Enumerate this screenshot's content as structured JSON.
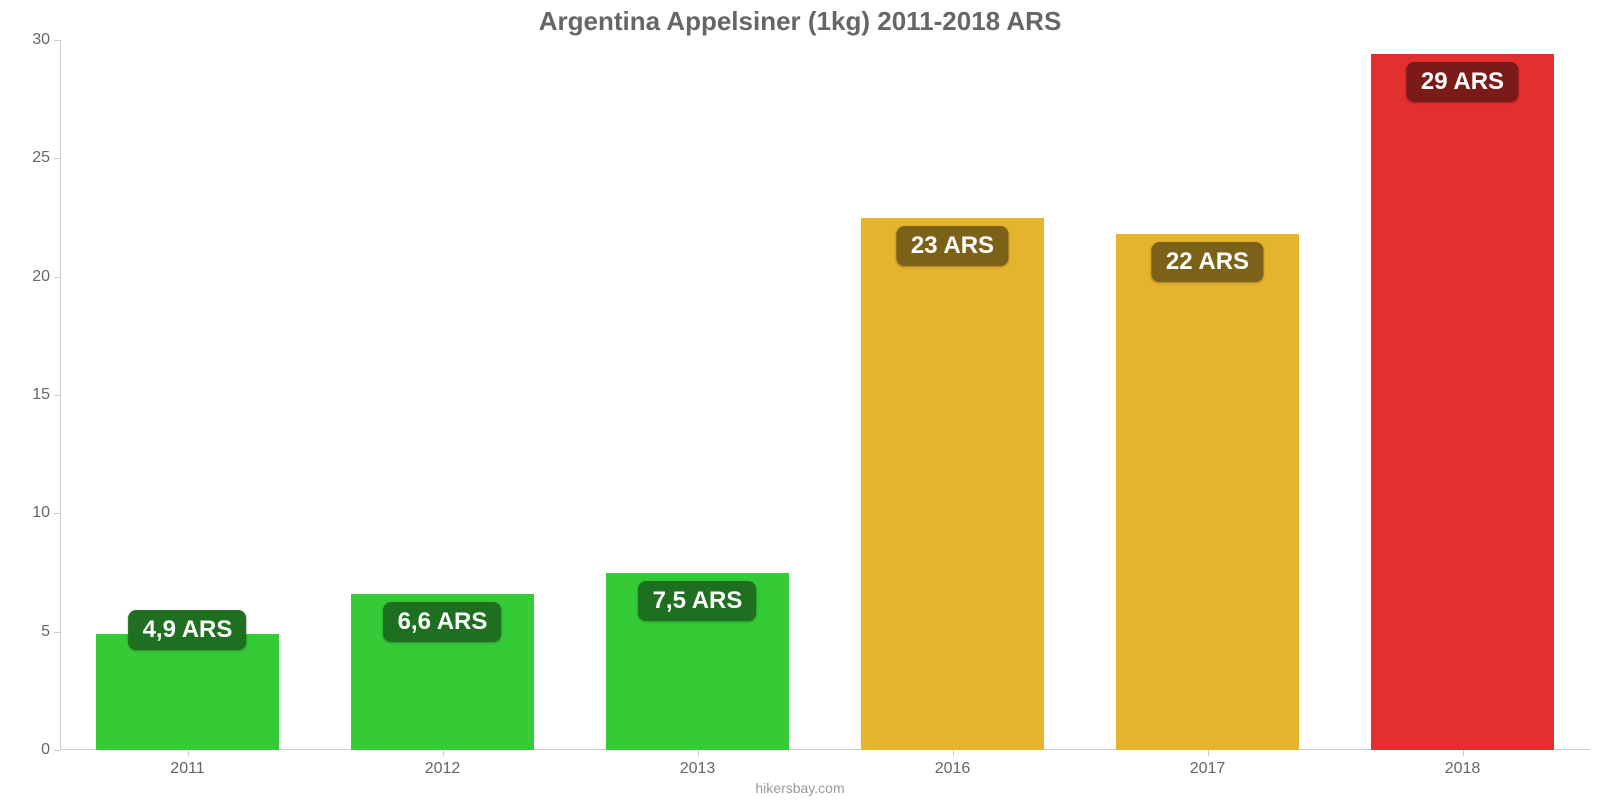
{
  "chart": {
    "type": "bar",
    "title": "Argentina Appelsiner (1kg) 2011-2018 ARS",
    "title_fontsize": 26,
    "title_color": "#666666",
    "attribution": "hikersbay.com",
    "attribution_color": "#999999",
    "background_color": "#ffffff",
    "axis_color": "#cccccc",
    "tick_label_color": "#666666",
    "tick_label_fontsize": 16,
    "value_label_fontsize": 24,
    "ylim": [
      0,
      30
    ],
    "ytick_step": 5,
    "bar_width_ratio": 0.72,
    "categories": [
      "2011",
      "2012",
      "2013",
      "2016",
      "2017",
      "2018"
    ],
    "values": [
      4.9,
      6.6,
      7.5,
      22.5,
      21.8,
      29.4
    ],
    "value_labels": [
      "4,9 ARS",
      "6,6 ARS",
      "7,5 ARS",
      "23 ARS",
      "22 ARS",
      "29 ARS"
    ],
    "bar_colors": [
      "#35cb37",
      "#35cb37",
      "#35cb37",
      "#e6b32e",
      "#e6b32e",
      "#e2302e"
    ],
    "badge_colors": [
      "#1e6f1f",
      "#1e6f1f",
      "#1e6f1f",
      "#7c6119",
      "#7c6119",
      "#7a1a19"
    ],
    "label_positions": [
      "above",
      "below",
      "below",
      "below",
      "below",
      "below"
    ]
  }
}
